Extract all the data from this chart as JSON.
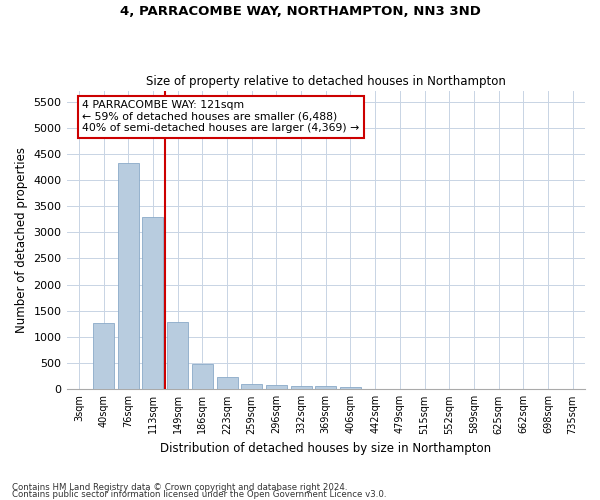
{
  "title": "4, PARRACOMBE WAY, NORTHAMPTON, NN3 3ND",
  "subtitle": "Size of property relative to detached houses in Northampton",
  "xlabel": "Distribution of detached houses by size in Northampton",
  "ylabel": "Number of detached properties",
  "footnote1": "Contains HM Land Registry data © Crown copyright and database right 2024.",
  "footnote2": "Contains public sector information licensed under the Open Government Licence v3.0.",
  "annotation_line1": "4 PARRACOMBE WAY: 121sqm",
  "annotation_line2": "← 59% of detached houses are smaller (6,488)",
  "annotation_line3": "40% of semi-detached houses are larger (4,369) →",
  "bar_color": "#b8ccdf",
  "bar_edge_color": "#8aaac8",
  "line_color": "#cc0000",
  "categories": [
    "3sqm",
    "40sqm",
    "76sqm",
    "113sqm",
    "149sqm",
    "186sqm",
    "223sqm",
    "259sqm",
    "296sqm",
    "332sqm",
    "369sqm",
    "406sqm",
    "442sqm",
    "479sqm",
    "515sqm",
    "552sqm",
    "589sqm",
    "625sqm",
    "662sqm",
    "698sqm",
    "735sqm"
  ],
  "values": [
    0,
    1270,
    4330,
    3290,
    1290,
    490,
    230,
    100,
    80,
    55,
    55,
    40,
    0,
    0,
    0,
    0,
    0,
    0,
    0,
    0,
    0
  ],
  "red_line_index": 3.5,
  "ylim": [
    0,
    5700
  ],
  "yticks": [
    0,
    500,
    1000,
    1500,
    2000,
    2500,
    3000,
    3500,
    4000,
    4500,
    5000,
    5500
  ],
  "background_color": "#ffffff",
  "grid_color": "#c8d4e4"
}
